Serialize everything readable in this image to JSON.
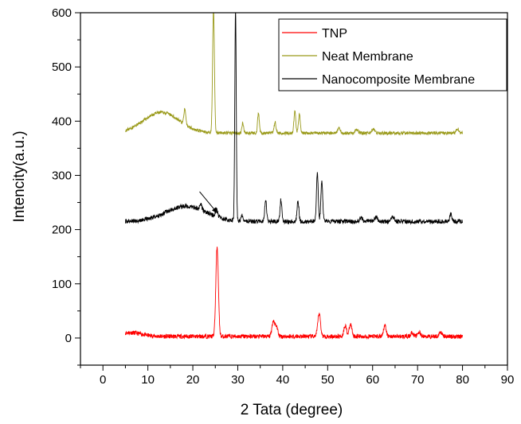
{
  "chart_data": {
    "type": "line",
    "xlabel": "2 Tata (degree)",
    "ylabel": "Intencity(a.u.)",
    "xlim": [
      -5,
      90
    ],
    "ylim": [
      -50,
      600
    ],
    "xticks": [
      0,
      10,
      20,
      30,
      40,
      50,
      60,
      70,
      80,
      90
    ],
    "yticks": [
      0,
      100,
      200,
      300,
      400,
      500,
      600
    ],
    "grid": false,
    "legend_position": "top-right",
    "annotations": [
      {
        "type": "arrow",
        "from": [
          21.5,
          270
        ],
        "to": [
          25.5,
          230
        ]
      }
    ],
    "series": [
      {
        "name": "TNP",
        "color": "#ff0000",
        "baseline": 3,
        "start": 5,
        "end": 80,
        "noise": 4,
        "seed": 11,
        "humps": [
          {
            "center": 6,
            "height": 7,
            "width": 2.5
          }
        ],
        "peaks": [
          {
            "x": 25.4,
            "y": 165,
            "w": 0.28
          },
          {
            "x": 37.9,
            "y": 28,
            "w": 0.3
          },
          {
            "x": 38.6,
            "y": 18,
            "w": 0.3
          },
          {
            "x": 48.1,
            "y": 43,
            "w": 0.3
          },
          {
            "x": 53.9,
            "y": 20,
            "w": 0.3
          },
          {
            "x": 55.1,
            "y": 22,
            "w": 0.3
          },
          {
            "x": 62.7,
            "y": 20,
            "w": 0.3
          },
          {
            "x": 68.8,
            "y": 7,
            "w": 0.3
          },
          {
            "x": 70.3,
            "y": 8,
            "w": 0.3
          },
          {
            "x": 75.1,
            "y": 9,
            "w": 0.3
          }
        ]
      },
      {
        "name": "Neat Membrane",
        "color": "#9a9a1a",
        "baseline": 378,
        "start": 5,
        "end": 80,
        "noise": 3,
        "seed": 23,
        "humps": [
          {
            "center": 13,
            "height": 38,
            "width": 4
          }
        ],
        "peaks": [
          {
            "x": 18.2,
            "y": 28,
            "w": 0.2
          },
          {
            "x": 24.6,
            "y": 230,
            "w": 0.2
          },
          {
            "x": 31.1,
            "y": 18,
            "w": 0.2
          },
          {
            "x": 34.6,
            "y": 35,
            "w": 0.2
          },
          {
            "x": 38.3,
            "y": 20,
            "w": 0.2
          },
          {
            "x": 42.7,
            "y": 40,
            "w": 0.2
          },
          {
            "x": 43.7,
            "y": 35,
            "w": 0.2
          },
          {
            "x": 52.5,
            "y": 10,
            "w": 0.3
          },
          {
            "x": 56.4,
            "y": 8,
            "w": 0.3
          },
          {
            "x": 60.1,
            "y": 8,
            "w": 0.3
          },
          {
            "x": 78.9,
            "y": 8,
            "w": 0.3
          }
        ]
      },
      {
        "name": "Nanocomposite Membrane",
        "color": "#000000",
        "baseline": 215,
        "start": 5,
        "end": 80,
        "noise": 4,
        "seed": 37,
        "humps": [
          {
            "center": 18.5,
            "height": 28,
            "width": 4.5
          }
        ],
        "peaks": [
          {
            "x": 21.8,
            "y": 10,
            "w": 0.25
          },
          {
            "x": 25.3,
            "y": 14,
            "w": 0.25
          },
          {
            "x": 29.5,
            "y": 390,
            "w": 0.16
          },
          {
            "x": 31.0,
            "y": 10,
            "w": 0.2
          },
          {
            "x": 36.2,
            "y": 40,
            "w": 0.2
          },
          {
            "x": 39.6,
            "y": 40,
            "w": 0.2
          },
          {
            "x": 43.4,
            "y": 38,
            "w": 0.2
          },
          {
            "x": 47.7,
            "y": 88,
            "w": 0.2
          },
          {
            "x": 48.7,
            "y": 75,
            "w": 0.2
          },
          {
            "x": 57.4,
            "y": 8,
            "w": 0.3
          },
          {
            "x": 60.8,
            "y": 8,
            "w": 0.3
          },
          {
            "x": 64.5,
            "y": 8,
            "w": 0.3
          },
          {
            "x": 77.4,
            "y": 14,
            "w": 0.25
          }
        ]
      }
    ]
  }
}
